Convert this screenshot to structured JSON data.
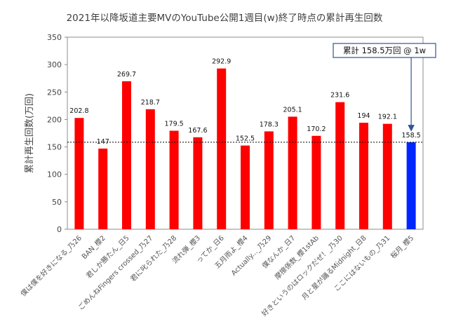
{
  "chart_data": {
    "type": "bar",
    "title": "2021年以降坂道主要MVのYouTube公開1週目(w)終了時点の累計再生回数",
    "ylabel": "累計再生回数(万回)",
    "xlabel": "",
    "ylim": [
      0,
      350
    ],
    "yticks": [
      0,
      50,
      100,
      150,
      200,
      250,
      300,
      350
    ],
    "grid": false,
    "categories": [
      "僕は僕を好きになる_乃26",
      "BAN_櫻2",
      "君しか勝たん_日5",
      "ごめんねFingers crossed_乃27",
      "君に叱られた_乃28",
      "流れ弾_櫻3",
      "ってか_日6",
      "五月雨よ_櫻4",
      "Actually..._乃29",
      "僕なんか_日7",
      "摩擦係数_櫻1stAb",
      "好きというのはロックだぜ！_乃30",
      "月と星が踊るMidnight_日8",
      "ここにはないもの_乃31",
      "桜月_櫻5"
    ],
    "values": [
      202.8,
      147,
      269.7,
      218.7,
      179.5,
      167.6,
      292.9,
      152.5,
      178.3,
      205.1,
      170.2,
      231.6,
      194,
      192.1,
      158.5
    ],
    "value_labels": [
      "202.8",
      "147",
      "269.7",
      "218.7",
      "179.5",
      "167.6",
      "292.9",
      "152.5",
      "178.3",
      "205.1",
      "170.2",
      "231.6",
      "194",
      "192.1",
      "158.5"
    ],
    "bar_colors": [
      "#ff0000",
      "#ff0000",
      "#ff0000",
      "#ff0000",
      "#ff0000",
      "#ff0000",
      "#ff0000",
      "#ff0000",
      "#ff0000",
      "#ff0000",
      "#ff0000",
      "#ff0000",
      "#ff0000",
      "#ff0000",
      "#0026ff"
    ],
    "reference_line": {
      "value": 158.5,
      "style": "dotted"
    },
    "annotation": {
      "text": "累計 158.5万回 @ 1w",
      "target_category": "桜月_櫻5"
    }
  }
}
